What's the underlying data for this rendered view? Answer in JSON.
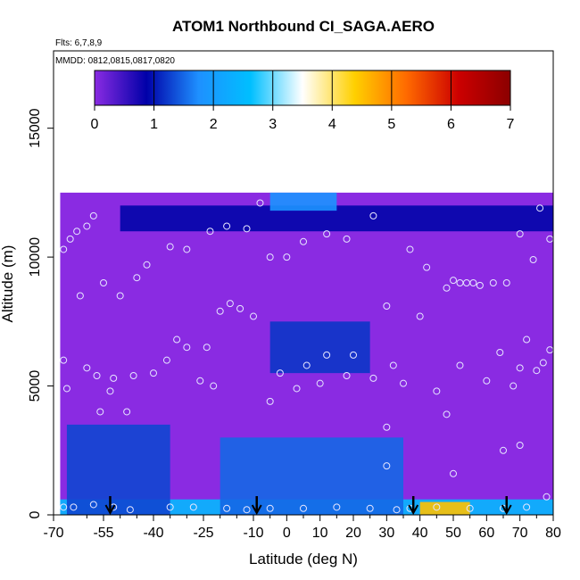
{
  "chart_data": {
    "type": "heatmap",
    "title": "ATOM1 Northbound CI_SAGA.AERO",
    "subtitle_flights": "Flts: 6,7,8,9",
    "subtitle_dates": "MMDD: 0812,0815,0817,0820",
    "xlabel": "Latitude (deg N)",
    "ylabel": "Altitude (m)",
    "xlim": [
      -70,
      80
    ],
    "ylim": [
      0,
      18000
    ],
    "x_ticks": [
      "-70",
      "-55",
      "-40",
      "-25",
      "-10",
      "0",
      "10",
      "20",
      "30",
      "40",
      "50",
      "60",
      "70",
      "80"
    ],
    "x_tick_values": [
      -70,
      -55,
      -40,
      -25,
      -10,
      0,
      10,
      20,
      30,
      40,
      50,
      60,
      70,
      80
    ],
    "x_minor_ticks": [
      -60,
      -50,
      -45,
      -35,
      -30,
      -20,
      -15,
      -5,
      5,
      15,
      25,
      35,
      45,
      55,
      65,
      75
    ],
    "y_ticks": [
      "0",
      "5000",
      "10000",
      "15000"
    ],
    "y_tick_values": [
      0,
      5000,
      10000,
      15000
    ],
    "colorbar": {
      "min": 0,
      "max": 7,
      "tick_labels": [
        "0",
        "1",
        "2",
        "3",
        "4",
        "5",
        "6",
        "7"
      ],
      "colors": [
        "#8a2be2",
        "#0000a8",
        "#1e90ff",
        "#00bfff",
        "#ffffff",
        "#ffd000",
        "#ff6a00",
        "#cc0000",
        "#8b0000"
      ]
    },
    "background_color": "#8a2be2",
    "data_extent": {
      "lat_min": -68,
      "lat_max": 80,
      "alt_min": 0,
      "alt_max": 12500
    },
    "enhanced_regions": [
      {
        "lat_range": [
          -68,
          80
        ],
        "alt_range": [
          0,
          600
        ],
        "value": 2.5
      },
      {
        "lat_range": [
          -66,
          -35
        ],
        "alt_range": [
          0,
          3500
        ],
        "value": 1.3
      },
      {
        "lat_range": [
          -20,
          35
        ],
        "alt_range": [
          0,
          3000
        ],
        "value": 1.5
      },
      {
        "lat_range": [
          -5,
          25
        ],
        "alt_range": [
          5500,
          7500
        ],
        "value": 1.2
      },
      {
        "lat_range": [
          -50,
          80
        ],
        "alt_range": [
          11000,
          12000
        ],
        "value": 0.9
      },
      {
        "lat_range": [
          -5,
          15
        ],
        "alt_range": [
          11800,
          12500
        ],
        "value": 1.8
      },
      {
        "lat_range": [
          40,
          55
        ],
        "alt_range": [
          0,
          500
        ],
        "value": 4.5
      }
    ],
    "sample_points": [
      [
        -67,
        300
      ],
      [
        -64,
        300
      ],
      [
        -58,
        400
      ],
      [
        -52,
        300
      ],
      [
        -47,
        200
      ],
      [
        -35,
        300
      ],
      [
        -28,
        300
      ],
      [
        -18,
        250
      ],
      [
        -12,
        200
      ],
      [
        -5,
        250
      ],
      [
        5,
        250
      ],
      [
        15,
        300
      ],
      [
        25,
        250
      ],
      [
        33,
        200
      ],
      [
        37,
        250
      ],
      [
        45,
        300
      ],
      [
        55,
        250
      ],
      [
        65,
        250
      ],
      [
        72,
        300
      ],
      [
        78,
        700
      ],
      [
        -67,
        6000
      ],
      [
        -60,
        5700
      ],
      [
        -57,
        5400
      ],
      [
        -53,
        4800
      ],
      [
        -52,
        5300
      ],
      [
        -46,
        5400
      ],
      [
        -40,
        5500
      ],
      [
        -36,
        6000
      ],
      [
        -33,
        6800
      ],
      [
        -30,
        6500
      ],
      [
        -26,
        5200
      ],
      [
        -24,
        6500
      ],
      [
        -22,
        5000
      ],
      [
        -20,
        7900
      ],
      [
        -17,
        8200
      ],
      [
        -14,
        8000
      ],
      [
        -10,
        7700
      ],
      [
        -5,
        4400
      ],
      [
        -2,
        5500
      ],
      [
        3,
        4900
      ],
      [
        6,
        5800
      ],
      [
        10,
        5100
      ],
      [
        12,
        6200
      ],
      [
        18,
        5400
      ],
      [
        20,
        6200
      ],
      [
        26,
        5300
      ],
      [
        30,
        3400
      ],
      [
        32,
        5800
      ],
      [
        35,
        5100
      ],
      [
        40,
        7700
      ],
      [
        45,
        4800
      ],
      [
        48,
        3900
      ],
      [
        52,
        5800
      ],
      [
        60,
        5200
      ],
      [
        64,
        6300
      ],
      [
        68,
        5000
      ],
      [
        70,
        5700
      ],
      [
        72,
        6800
      ],
      [
        75,
        5600
      ],
      [
        77,
        5900
      ],
      [
        79,
        6400
      ],
      [
        -56,
        4000
      ],
      [
        -48,
        4000
      ],
      [
        -62,
        8500
      ],
      [
        -55,
        9000
      ],
      [
        -50,
        8500
      ],
      [
        -45,
        9200
      ],
      [
        -42,
        9700
      ],
      [
        -35,
        10400
      ],
      [
        -30,
        10300
      ],
      [
        -23,
        11000
      ],
      [
        -18,
        11200
      ],
      [
        -12,
        11100
      ],
      [
        -8,
        12100
      ],
      [
        -5,
        10000
      ],
      [
        0,
        10000
      ],
      [
        5,
        10600
      ],
      [
        12,
        10900
      ],
      [
        18,
        10700
      ],
      [
        26,
        11600
      ],
      [
        30,
        8100
      ],
      [
        37,
        10300
      ],
      [
        42,
        9600
      ],
      [
        48,
        8800
      ],
      [
        50,
        9100
      ],
      [
        52,
        9000
      ],
      [
        54,
        9000
      ],
      [
        56,
        9000
      ],
      [
        58,
        8900
      ],
      [
        62,
        9000
      ],
      [
        66,
        9000
      ],
      [
        70,
        10900
      ],
      [
        74,
        9900
      ],
      [
        76,
        11900
      ],
      [
        79,
        10700
      ],
      [
        -67,
        10300
      ],
      [
        -65,
        10700
      ],
      [
        -63,
        11000
      ],
      [
        -60,
        11200
      ],
      [
        -58,
        11600
      ],
      [
        -66,
        4900
      ],
      [
        30,
        1900
      ],
      [
        50,
        1600
      ],
      [
        65,
        2500
      ],
      [
        70,
        2700
      ]
    ],
    "flight_markers_lat": [
      -53,
      -9,
      38,
      66
    ]
  }
}
